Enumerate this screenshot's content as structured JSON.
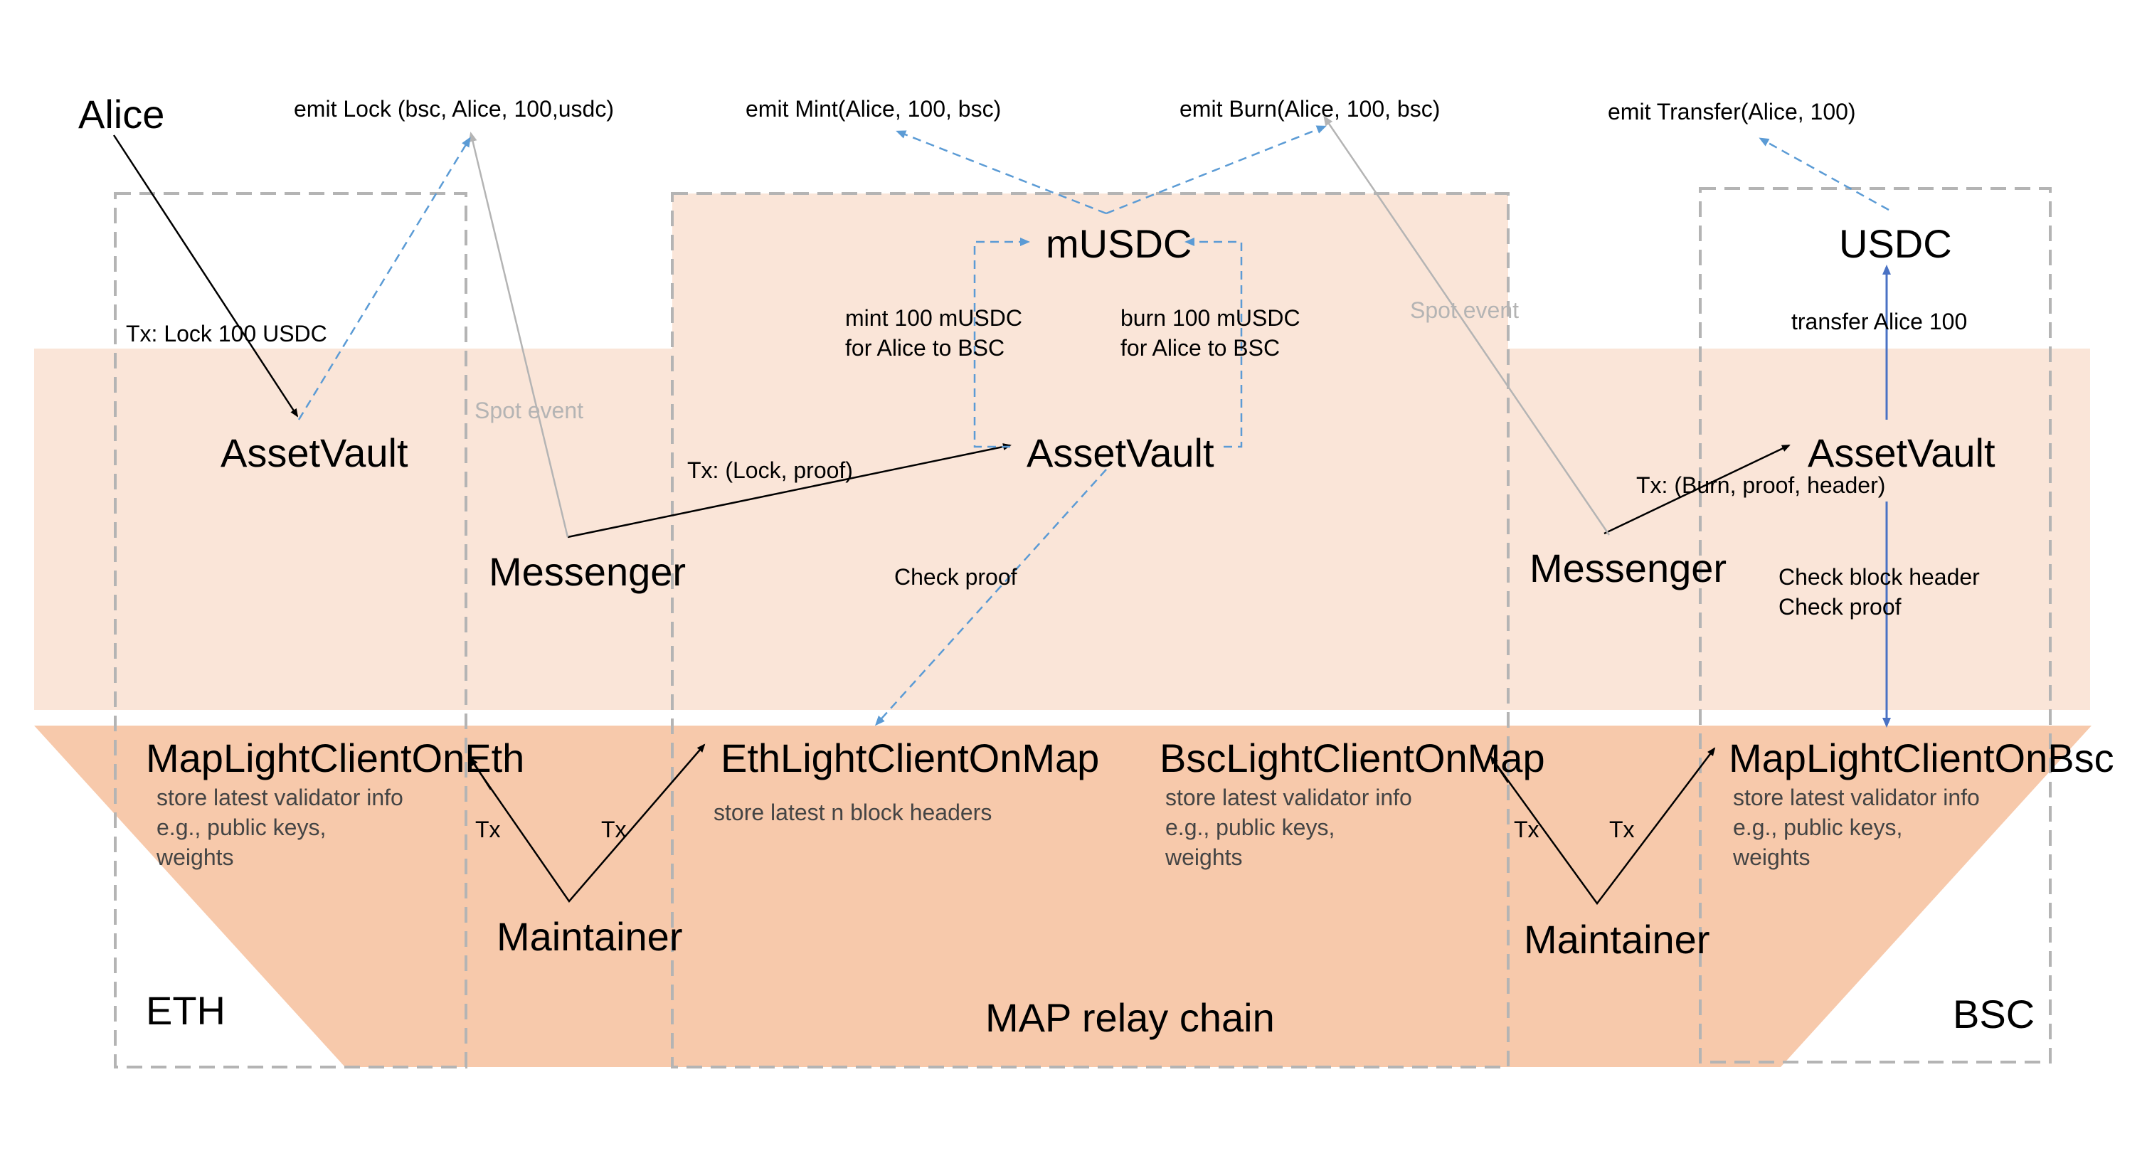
{
  "colors": {
    "band_light": "#fae5d8",
    "band_dark": "#f7c9ab",
    "dashed_box": "#b4b4b4",
    "blue_dashed": "#5b9bd5",
    "blue_solid": "#4a72c4",
    "gray_line": "#b4b4b4",
    "black_line": "#000000"
  },
  "chains": {
    "eth": "ETH",
    "map": "MAP relay chain",
    "bsc": "BSC"
  },
  "actors": {
    "alice": "Alice",
    "messenger_left": "Messenger",
    "messenger_right": "Messenger",
    "maintainer_left": "Maintainer",
    "maintainer_right": "Maintainer"
  },
  "contracts": {
    "asset_vault_eth": "AssetVault",
    "asset_vault_map": "AssetVault",
    "asset_vault_bsc": "AssetVault",
    "musdc": "mUSDC",
    "usdc": "USDC",
    "map_lc_on_eth": "MapLightClientOnEth",
    "eth_lc_on_map": "EthLightClientOnMap",
    "bsc_lc_on_map": "BscLightClientOnMap",
    "map_lc_on_bsc": "MapLightClientOnBsc"
  },
  "events": {
    "lock": "emit Lock (bsc, Alice, 100,usdc)",
    "mint": "emit Mint(Alice, 100, bsc)",
    "burn": "emit Burn(Alice, 100, bsc)",
    "transfer": "emit Transfer(Alice, 100)"
  },
  "labels": {
    "tx_lock": "Tx: Lock 100 USDC",
    "spot_event_left": "Spot event",
    "spot_event_right": "Spot event",
    "tx_lock_proof": "Tx: (Lock, proof)",
    "tx_burn_proof_header": "Tx: (Burn, proof, header)",
    "mint_line1": "mint 100 mUSDC",
    "mint_line2": "for Alice to BSC",
    "burn_line1": "burn 100 mUSDC",
    "burn_line2": "for Alice to BSC",
    "check_proof": "Check proof",
    "check_block_header": "Check block header",
    "check_proof_bsc": "Check proof",
    "transfer_alice": "transfer Alice 100",
    "tx_1": "Tx",
    "tx_2": "Tx",
    "tx_3": "Tx",
    "tx_4": "Tx"
  },
  "notes": {
    "map_lc_eth_line1": "store latest validator info",
    "map_lc_eth_line2": "e.g., public keys,",
    "map_lc_eth_line3": "weights",
    "eth_lc_map_line1": "store latest n block headers",
    "bsc_lc_map_line1": "store latest validator info",
    "bsc_lc_map_line2": "e.g., public keys,",
    "bsc_lc_map_line3": "weights",
    "map_lc_bsc_line1": "store latest validator info",
    "map_lc_bsc_line2": "e.g., public keys,",
    "map_lc_bsc_line3": "weights"
  }
}
